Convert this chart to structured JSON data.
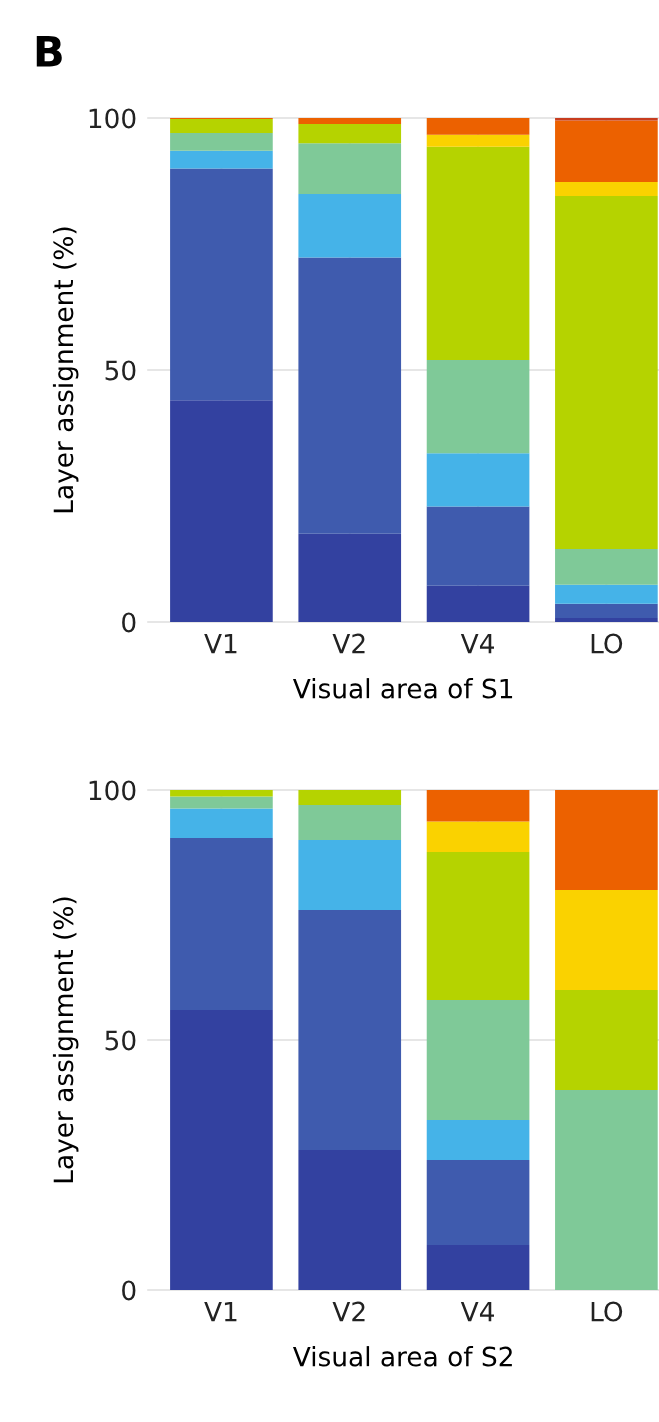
{
  "chart_data": [
    {
      "type": "bar",
      "title": "B",
      "stacked": true,
      "xlabel": "Visual area of S1",
      "ylabel": "Layer assignment (%)",
      "categories": [
        "V1",
        "V2",
        "V4",
        "LO"
      ],
      "ylim": [
        0,
        100
      ],
      "yticks": [
        0,
        50,
        100
      ],
      "grid": true,
      "series": [
        {
          "color": "#3341a0",
          "values": [
            44,
            17.5,
            7.2,
            0.8
          ]
        },
        {
          "color": "#3f5bae",
          "values": [
            46,
            54.8,
            15.7,
            2.8
          ]
        },
        {
          "color": "#45b3e8",
          "values": [
            3.5,
            12.6,
            10.6,
            3.8
          ]
        },
        {
          "color": "#7fc998",
          "values": [
            3.5,
            10.1,
            18.5,
            7.1
          ]
        },
        {
          "color": "#b5d300",
          "values": [
            2.8,
            3.8,
            42.3,
            70
          ]
        },
        {
          "color": "#fad200",
          "values": [
            0,
            0,
            2.4,
            2.8
          ]
        },
        {
          "color": "#ec6100",
          "values": [
            0.2,
            1.2,
            3.3,
            12.2
          ]
        },
        {
          "color": "#c83c1e",
          "values": [
            0,
            0,
            0,
            0.5
          ]
        }
      ]
    },
    {
      "type": "bar",
      "stacked": true,
      "xlabel": "Visual area of S2",
      "ylabel": "Layer assignment (%)",
      "categories": [
        "V1",
        "V2",
        "V4",
        "LO"
      ],
      "ylim": [
        0,
        100
      ],
      "yticks": [
        0,
        50,
        100
      ],
      "grid": true,
      "series": [
        {
          "color": "#3341a0",
          "values": [
            56,
            28,
            9,
            0
          ]
        },
        {
          "color": "#3f5bae",
          "values": [
            34.4,
            48,
            17,
            0
          ]
        },
        {
          "color": "#45b3e8",
          "values": [
            5.9,
            14,
            8,
            0
          ]
        },
        {
          "color": "#7fc998",
          "values": [
            2.4,
            7,
            24,
            40
          ]
        },
        {
          "color": "#b5d300",
          "values": [
            1.3,
            3,
            29.6,
            20
          ]
        },
        {
          "color": "#fad200",
          "values": [
            0,
            0,
            6.1,
            20
          ]
        },
        {
          "color": "#ec6100",
          "values": [
            0,
            0,
            6.3,
            20
          ]
        }
      ]
    }
  ]
}
